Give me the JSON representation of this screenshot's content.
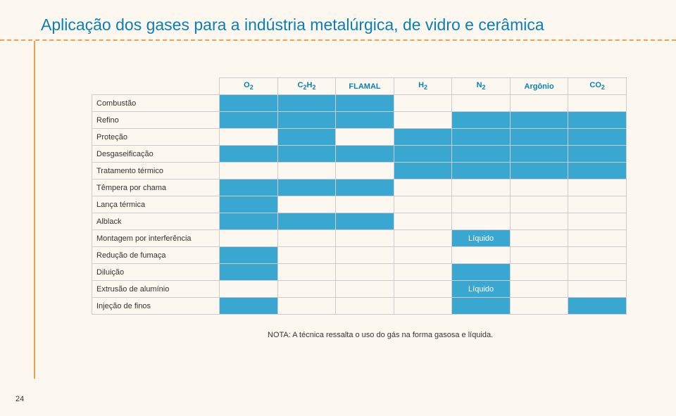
{
  "colors": {
    "title": "#0a7fb5",
    "dashed": "#f0a050",
    "vline": "#f0a050",
    "header_text": "#0a7fb5",
    "fill": "#39a7cf",
    "border": "#cccccc",
    "bg": "#fdf8ef"
  },
  "title": "Aplicação dos gases para a indústria metalúrgica, de vidro e cerâmica",
  "columns": [
    {
      "label": "O",
      "sub": "2"
    },
    {
      "label": "C",
      "sub": "2",
      "label2": "H",
      "sub2": "2"
    },
    {
      "label": "FLAMAL"
    },
    {
      "label": "H",
      "sub": "2"
    },
    {
      "label": "N",
      "sub": "2"
    },
    {
      "label": "Argônio"
    },
    {
      "label": "CO",
      "sub": "2"
    }
  ],
  "rows": [
    {
      "label": "Combustão",
      "cells": [
        "f",
        "f",
        "f",
        "",
        "",
        "",
        ""
      ]
    },
    {
      "label": "Refino",
      "cells": [
        "f",
        "f",
        "f",
        "",
        "f",
        "f",
        "f"
      ]
    },
    {
      "label": "Proteção",
      "cells": [
        "",
        "f",
        "",
        "f",
        "f",
        "f",
        "f"
      ]
    },
    {
      "label": "Desgaseificação",
      "cells": [
        "f",
        "f",
        "f",
        "f",
        "f",
        "f",
        "f"
      ]
    },
    {
      "label": "Tratamento térmico",
      "cells": [
        "",
        "",
        "",
        "f",
        "f",
        "f",
        "f"
      ]
    },
    {
      "label": "Têmpera por chama",
      "cells": [
        "f",
        "f",
        "f",
        "",
        "",
        "",
        ""
      ]
    },
    {
      "label": "Lança térmica",
      "cells": [
        "f",
        "",
        "",
        "",
        "",
        "",
        ""
      ]
    },
    {
      "label": "Alblack",
      "cells": [
        "f",
        "f",
        "f",
        "",
        "",
        "",
        ""
      ]
    },
    {
      "label": "Montagem por interferência",
      "cells": [
        "",
        "",
        "",
        "",
        "L",
        "",
        ""
      ]
    },
    {
      "label": "Redução de fumaça",
      "cells": [
        "f",
        "",
        "",
        "",
        "",
        "",
        ""
      ]
    },
    {
      "label": "Diluição",
      "cells": [
        "f",
        "",
        "",
        "",
        "f",
        "",
        ""
      ]
    },
    {
      "label": "Extrusão de alumínio",
      "cells": [
        "",
        "",
        "",
        "",
        "L",
        "",
        ""
      ]
    },
    {
      "label": "Injeção de finos",
      "cells": [
        "f",
        "",
        "",
        "",
        "f",
        "",
        "f"
      ]
    }
  ],
  "liquid_label": "Líquido",
  "note": "NOTA: A técnica ressalta o uso do gás na forma gasosa e líquida.",
  "page_number": "24",
  "layout": {
    "col_label_width": 180,
    "col_data_width": 82
  }
}
